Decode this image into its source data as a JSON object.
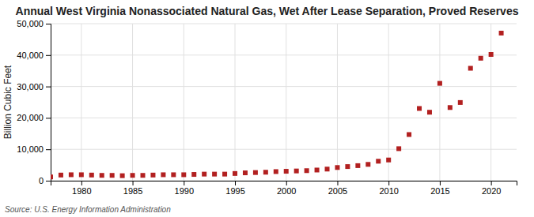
{
  "chart_data": {
    "type": "scatter",
    "title": "Annual West Virginia Nonassociated Natural Gas, Wet After Lease Separation, Proved Reserves",
    "ylabel": "Billion Cubic Feet",
    "source": "Source: U.S. Energy Information Administration",
    "x": [
      1977,
      1978,
      1979,
      1980,
      1981,
      1982,
      1983,
      1984,
      1985,
      1986,
      1987,
      1988,
      1989,
      1990,
      1991,
      1992,
      1993,
      1994,
      1995,
      1996,
      1997,
      1998,
      1999,
      2000,
      2001,
      2002,
      2003,
      2004,
      2005,
      2006,
      2007,
      2008,
      2009,
      2010,
      2011,
      2012,
      2013,
      2014,
      2015,
      2016,
      2017,
      2018,
      2019,
      2020,
      2021
    ],
    "values": [
      1200,
      1800,
      1900,
      1900,
      1800,
      1700,
      1700,
      1600,
      1700,
      1700,
      1800,
      1900,
      1900,
      1900,
      2000,
      2100,
      2100,
      2100,
      2300,
      2500,
      2600,
      2700,
      2900,
      3000,
      3100,
      3200,
      3400,
      3700,
      4200,
      4500,
      4800,
      5200,
      6200,
      6600,
      10200,
      14700,
      23000,
      21800,
      31000,
      23300,
      24900,
      35800,
      39000,
      40200,
      47000
    ],
    "color": "#b22020",
    "marker": "square",
    "xlim": [
      1977,
      2022.5
    ],
    "ylim": [
      0,
      50000
    ],
    "xticks": [
      1980,
      1985,
      1990,
      1995,
      2000,
      2005,
      2010,
      2015,
      2020
    ],
    "yticks": [
      0,
      {
        "value": 10000,
        "label": "10,000"
      },
      {
        "value": 20000,
        "label": "20,000"
      },
      {
        "value": 30000,
        "label": "30,000"
      },
      {
        "value": 40000,
        "label": "40,000"
      },
      {
        "value": 50000,
        "label": "50,000"
      }
    ],
    "grid": true
  }
}
